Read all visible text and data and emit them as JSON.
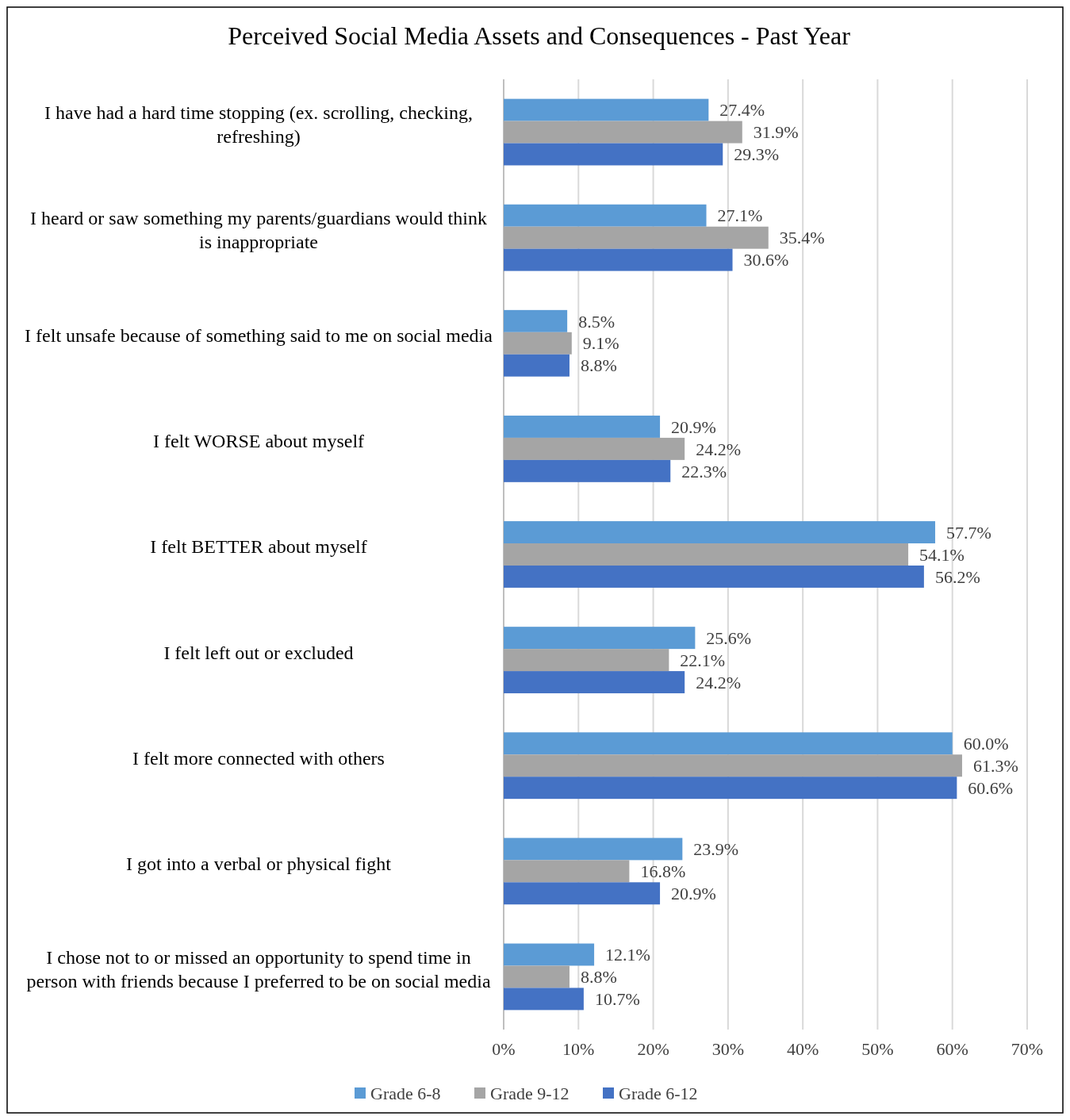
{
  "chart_data": {
    "type": "bar",
    "orientation": "horizontal",
    "title": "Perceived Social Media Assets and Consequences - Past Year",
    "categories": [
      "I have had a hard time stopping (ex. scrolling, checking, refreshing)",
      "I heard or saw something my parents/guardians would think is inappropriate",
      "I felt unsafe because of something said to me on social media",
      "I felt WORSE about myself",
      "I felt BETTER about myself",
      "I felt left out or excluded",
      "I felt more connected with others",
      "I got into a verbal or physical fight",
      "I chose not to or missed an opportunity to spend time in person with friends because I preferred to be on social media"
    ],
    "series": [
      {
        "name": "Grade 6-8",
        "color": "#5b9bd5",
        "values": [
          27.4,
          27.1,
          8.5,
          20.9,
          57.7,
          25.6,
          60.0,
          23.9,
          12.1
        ],
        "value_labels": [
          "27.4%",
          "27.1%",
          "8.5%",
          "20.9%",
          "57.7%",
          "25.6%",
          "60.0%",
          "23.9%",
          "12.1%"
        ]
      },
      {
        "name": "Grade 9-12",
        "color": "#a5a5a5",
        "values": [
          31.9,
          35.4,
          9.1,
          24.2,
          54.1,
          22.1,
          61.3,
          16.8,
          8.8
        ],
        "value_labels": [
          "31.9%",
          "35.4%",
          "9.1%",
          "24.2%",
          "54.1%",
          "22.1%",
          "61.3%",
          "16.8%",
          "8.8%"
        ]
      },
      {
        "name": "Grade 6-12",
        "color": "#4472c4",
        "values": [
          29.3,
          30.6,
          8.8,
          22.3,
          56.2,
          24.2,
          60.6,
          20.9,
          10.7
        ],
        "value_labels": [
          "29.3%",
          "30.6%",
          "8.8%",
          "22.3%",
          "56.2%",
          "24.2%",
          "60.6%",
          "20.9%",
          "10.7%"
        ]
      }
    ],
    "xlim": [
      0,
      70
    ],
    "xticks": [
      {
        "value": 0,
        "label": "0%"
      },
      {
        "value": 10,
        "label": "10%"
      },
      {
        "value": 20,
        "label": "20%"
      },
      {
        "value": 30,
        "label": "30%"
      },
      {
        "value": 40,
        "label": "40%"
      },
      {
        "value": 50,
        "label": "50%"
      },
      {
        "value": 60,
        "label": "60%"
      },
      {
        "value": 70,
        "label": "70%"
      }
    ],
    "grid": "x",
    "legend": "bottom"
  }
}
